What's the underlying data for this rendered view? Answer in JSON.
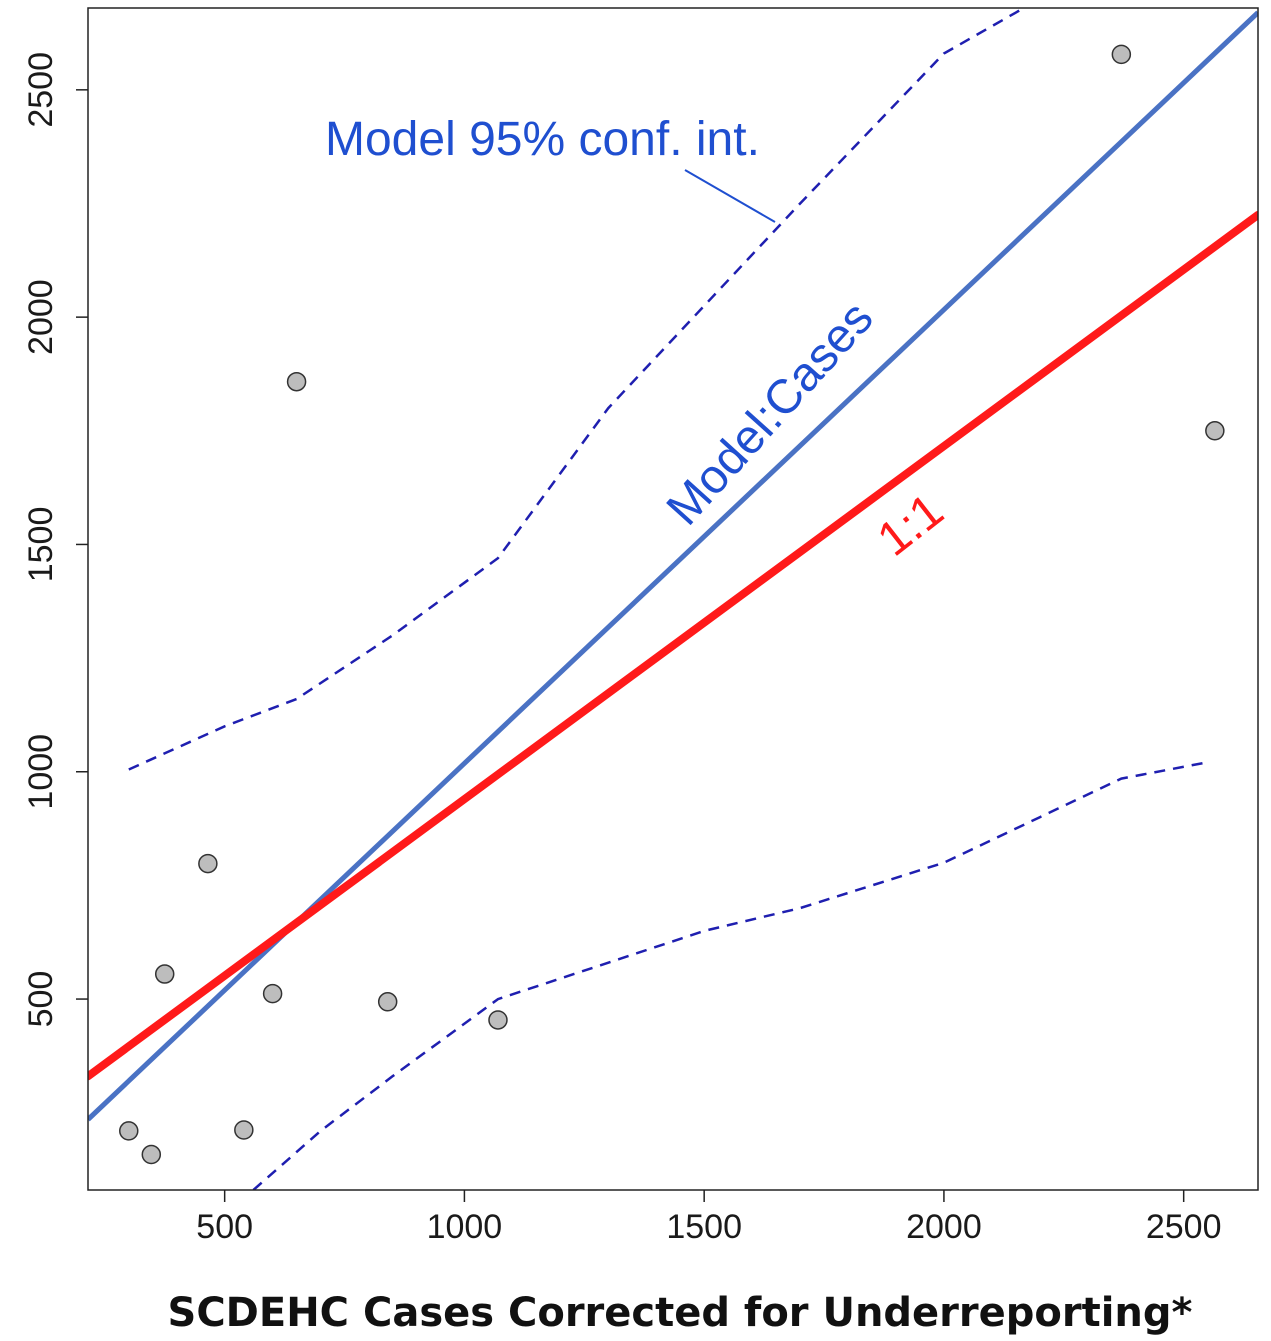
{
  "chart_data": {
    "type": "scatter",
    "title": "",
    "xlabel": "SCDEHC Cases Corrected for Underreporting*",
    "ylabel": "",
    "xlim": [
      215,
      2655
    ],
    "ylim": [
      80,
      2680
    ],
    "xticks": [
      500,
      1000,
      1500,
      2000,
      2500
    ],
    "yticks": [
      500,
      1000,
      1500,
      2000,
      2500
    ],
    "grid": false,
    "colors": {
      "points_fill": "#bdbdbd",
      "points_stroke": "#333333",
      "model_line": "#4a72c4",
      "one_to_one": "#ff1a1a",
      "conf_int": "#1f1fb0",
      "model_text": "#1f4fd0",
      "one_to_one_text": "#ff1a1a"
    },
    "points": [
      {
        "x": 300,
        "y": 210
      },
      {
        "x": 347,
        "y": 158
      },
      {
        "x": 375,
        "y": 555
      },
      {
        "x": 465,
        "y": 798
      },
      {
        "x": 540,
        "y": 212
      },
      {
        "x": 600,
        "y": 512
      },
      {
        "x": 650,
        "y": 1858
      },
      {
        "x": 840,
        "y": 494
      },
      {
        "x": 1070,
        "y": 454
      },
      {
        "x": 2370,
        "y": 2578
      },
      {
        "x": 2565,
        "y": 1750
      }
    ],
    "series": [
      {
        "kind": "model",
        "x": [
          215,
          2655
        ],
        "y": [
          235,
          2670
        ]
      },
      {
        "kind": "one_to_one",
        "x": [
          215,
          2655
        ],
        "y": [
          330,
          2225
        ]
      },
      {
        "kind": "ci_upper",
        "x": [
          300,
          500,
          650,
          850,
          1070,
          1300,
          1700,
          2000,
          2200
        ],
        "y": [
          1005,
          1100,
          1160,
          1300,
          1470,
          1800,
          2250,
          2580,
          2700
        ]
      },
      {
        "kind": "ci_lower",
        "x": [
          560,
          700,
          850,
          1070,
          1300,
          1500,
          1700,
          2000,
          2200,
          2370,
          2555
        ],
        "y": [
          80,
          210,
          330,
          500,
          580,
          650,
          700,
          800,
          900,
          985,
          1022
        ]
      }
    ],
    "annotations": [
      {
        "text": "Model 95% conf. int."
      },
      {
        "text": "Model:Cases"
      },
      {
        "text": "1:1"
      }
    ]
  }
}
